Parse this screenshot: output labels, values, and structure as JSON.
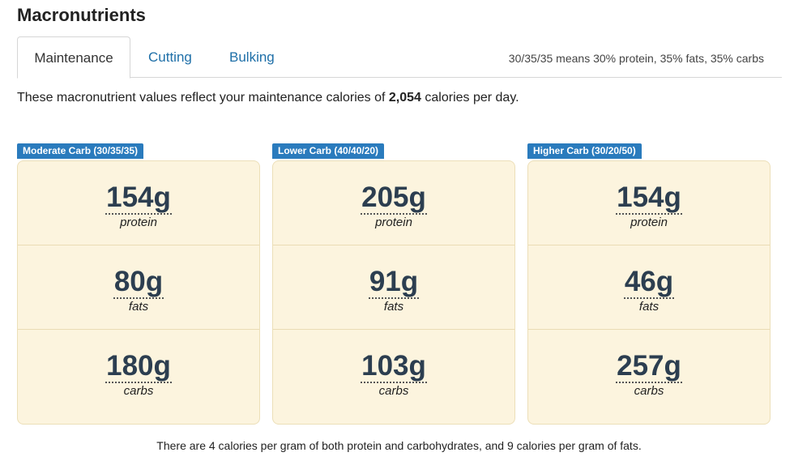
{
  "page_title": "Macronutrients",
  "tabs": [
    {
      "label": "Maintenance",
      "active": true
    },
    {
      "label": "Cutting",
      "active": false
    },
    {
      "label": "Bulking",
      "active": false
    }
  ],
  "tab_note": "30/35/35 means 30% protein, 35% fats, 35% carbs",
  "intro": {
    "before": "These macronutrient values reflect your maintenance calories of ",
    "calories": "2,054",
    "after": " calories per day."
  },
  "cards": [
    {
      "label": "Moderate Carb (30/35/35)",
      "rows": [
        {
          "value": "154g",
          "unit": "protein"
        },
        {
          "value": "80g",
          "unit": "fats"
        },
        {
          "value": "180g",
          "unit": "carbs"
        }
      ]
    },
    {
      "label": "Lower Carb (40/40/20)",
      "rows": [
        {
          "value": "205g",
          "unit": "protein"
        },
        {
          "value": "91g",
          "unit": "fats"
        },
        {
          "value": "103g",
          "unit": "carbs"
        }
      ]
    },
    {
      "label": "Higher Carb (30/20/50)",
      "rows": [
        {
          "value": "154g",
          "unit": "protein"
        },
        {
          "value": "46g",
          "unit": "fats"
        },
        {
          "value": "257g",
          "unit": "carbs"
        }
      ]
    }
  ],
  "footnote": "There are 4 calories per gram of both protein and carbohydrates, and 9 calories per gram of fats.",
  "colors": {
    "label_bg": "#2a7bbd",
    "card_bg": "#fcf4de",
    "link": "#1e6fa8",
    "value_text": "#2c3e50"
  }
}
